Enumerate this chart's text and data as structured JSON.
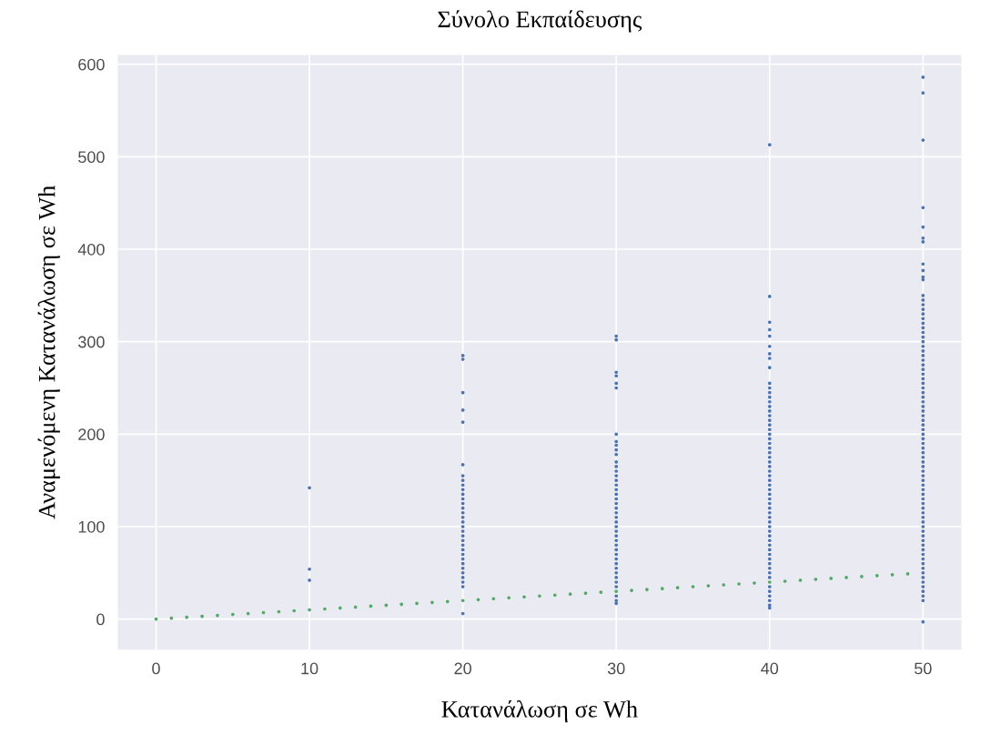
{
  "chart_data": {
    "type": "scatter",
    "title": "Σύνολο Εκπαίδευσης",
    "xlabel": "Κατανάλωση σε Wh",
    "ylabel": "Αναμενόμενη Κατανάλωση σε Wh",
    "xlim": [
      -2.5,
      52.5
    ],
    "ylim": [
      -33,
      610
    ],
    "xticks": [
      0,
      10,
      20,
      30,
      40,
      50
    ],
    "yticks": [
      0,
      100,
      200,
      300,
      400,
      500,
      600
    ],
    "grid": true,
    "marker": "circle",
    "series": [
      {
        "color": "#4c72b0",
        "x": [
          10,
          10,
          10
        ],
        "values": [
          42,
          54,
          142
        ]
      },
      {
        "color": "#4c72b0",
        "x": [
          20,
          20,
          20,
          20,
          20,
          20,
          20,
          20,
          20,
          20,
          20,
          20,
          20,
          20,
          20,
          20,
          20,
          20,
          20,
          20,
          20,
          20,
          20,
          20,
          20,
          20,
          20,
          20,
          20,
          20,
          20,
          20
        ],
        "values": [
          6,
          35,
          40,
          45,
          50,
          55,
          60,
          65,
          70,
          75,
          80,
          85,
          90,
          95,
          100,
          105,
          110,
          115,
          120,
          125,
          130,
          135,
          140,
          145,
          150,
          155,
          167,
          213,
          226,
          245,
          281,
          285
        ]
      },
      {
        "color": "#4c72b0",
        "x": [
          30,
          30,
          30,
          30,
          30,
          30,
          30,
          30,
          30,
          30,
          30,
          30,
          30,
          30,
          30,
          30,
          30,
          30,
          30,
          30,
          30,
          30,
          30,
          30,
          30,
          30,
          30,
          30,
          30,
          30,
          30,
          30,
          30,
          30,
          30,
          30,
          30,
          30,
          30,
          30,
          30,
          30
        ],
        "values": [
          17,
          20,
          25,
          35,
          40,
          45,
          50,
          55,
          60,
          65,
          70,
          75,
          80,
          85,
          90,
          95,
          100,
          105,
          110,
          115,
          120,
          125,
          130,
          135,
          140,
          145,
          150,
          155,
          160,
          165,
          170,
          178,
          183,
          188,
          192,
          200,
          250,
          255,
          263,
          267,
          302,
          306
        ]
      },
      {
        "color": "#4c72b0",
        "x": [
          40,
          40,
          40,
          40,
          40,
          40,
          40,
          40,
          40,
          40,
          40,
          40,
          40,
          40,
          40,
          40,
          40,
          40,
          40,
          40,
          40,
          40,
          40,
          40,
          40,
          40,
          40,
          40,
          40,
          40,
          40,
          40,
          40,
          40,
          40,
          40,
          40,
          40,
          40,
          40,
          40,
          40,
          40,
          40,
          40,
          40,
          40,
          40,
          40,
          40,
          40,
          40,
          40,
          40,
          40,
          40,
          40,
          40
        ],
        "values": [
          12,
          15,
          20,
          25,
          30,
          35,
          45,
          50,
          55,
          60,
          65,
          70,
          75,
          80,
          85,
          90,
          95,
          100,
          105,
          110,
          115,
          120,
          125,
          130,
          135,
          140,
          145,
          150,
          155,
          160,
          165,
          170,
          175,
          180,
          185,
          190,
          195,
          200,
          205,
          210,
          215,
          220,
          225,
          230,
          235,
          240,
          245,
          250,
          255,
          272,
          282,
          287,
          295,
          306,
          313,
          321,
          349,
          513
        ]
      },
      {
        "color": "#4c72b0",
        "x": [
          50,
          50,
          50,
          50,
          50,
          50,
          50,
          50,
          50,
          50,
          50,
          50,
          50,
          50,
          50,
          50,
          50,
          50,
          50,
          50,
          50,
          50,
          50,
          50,
          50,
          50,
          50,
          50,
          50,
          50,
          50,
          50,
          50,
          50,
          50,
          50,
          50,
          50,
          50,
          50,
          50,
          50,
          50,
          50,
          50,
          50,
          50,
          50,
          50,
          50,
          50,
          50,
          50,
          50,
          50,
          50,
          50,
          50,
          50,
          50,
          50,
          50,
          50,
          50,
          50,
          50,
          50,
          50,
          50,
          50,
          50,
          50,
          50,
          50,
          50,
          50,
          50,
          50,
          50
        ],
        "values": [
          -3,
          20,
          25,
          30,
          35,
          40,
          45,
          50,
          55,
          60,
          65,
          70,
          75,
          80,
          85,
          90,
          95,
          100,
          105,
          110,
          115,
          120,
          125,
          130,
          135,
          140,
          145,
          150,
          155,
          160,
          165,
          170,
          175,
          180,
          185,
          190,
          195,
          200,
          205,
          210,
          215,
          220,
          225,
          230,
          235,
          240,
          245,
          250,
          255,
          260,
          265,
          270,
          275,
          280,
          285,
          290,
          295,
          300,
          305,
          310,
          315,
          320,
          325,
          330,
          335,
          340,
          345,
          350,
          367,
          370,
          377,
          384,
          408,
          412,
          424,
          445,
          518,
          569,
          586
        ]
      },
      {
        "color": "#55a868",
        "x": [
          0,
          1,
          2,
          3,
          4,
          5,
          6,
          7,
          8,
          9,
          10,
          11,
          12,
          13,
          14,
          15,
          16,
          17,
          18,
          19,
          20,
          21,
          22,
          23,
          24,
          25,
          26,
          27,
          28,
          29,
          30,
          31,
          32,
          33,
          34,
          35,
          36,
          37,
          38,
          39,
          40,
          41,
          42,
          43,
          44,
          45,
          46,
          47,
          48,
          49
        ],
        "values": [
          0,
          1,
          2,
          3,
          4,
          5,
          6,
          7,
          8,
          9,
          10,
          11,
          12,
          13,
          14,
          15,
          16,
          17,
          18,
          19,
          20,
          21,
          22,
          23,
          24,
          25,
          26,
          27,
          28,
          29,
          30,
          31,
          32,
          33,
          34,
          35,
          36,
          37,
          38,
          39,
          40,
          41,
          42,
          43,
          44,
          45,
          46,
          47,
          48,
          49
        ]
      }
    ]
  }
}
